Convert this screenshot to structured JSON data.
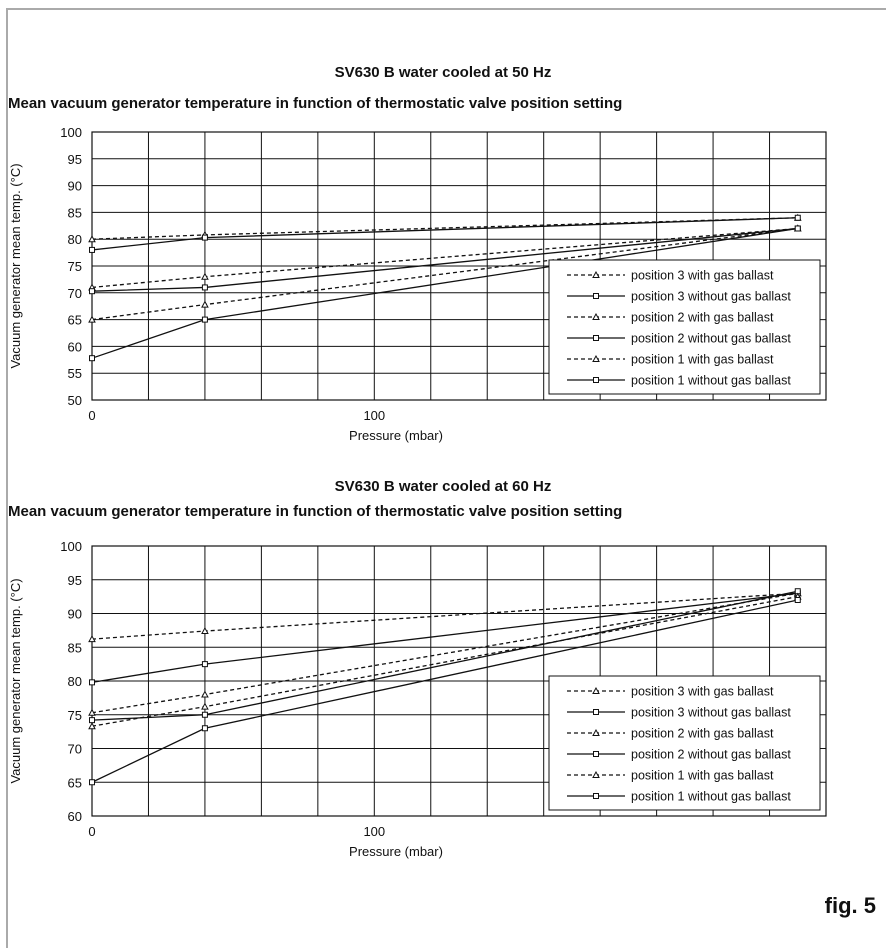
{
  "figure_label": "fig. 5",
  "charts": [
    {
      "title_line1": "SV630 B water cooled at 50 Hz",
      "title_line2": "Mean vacuum generator temperature in function of thermostatic valve position setting"
    },
    {
      "title_line1": "SV630 B water cooled at 60 Hz",
      "title_line2": "Mean vacuum generator temperature in function of thermostatic valve position setting"
    }
  ],
  "chart_data": [
    {
      "type": "line",
      "title": "SV630 B water cooled at 50 Hz",
      "subtitle": "Mean vacuum generator temperature in function of thermostatic valve position setting",
      "xlabel": "Pressure (mbar)",
      "ylabel": "Vacuum generator mean temp. (°C)",
      "xlim": [
        0,
        260
      ],
      "ylim": [
        50,
        100
      ],
      "x_ticks": [
        {
          "value": 0,
          "label": "0"
        },
        {
          "value": 100,
          "label": "100"
        }
      ],
      "y_ticks": [
        100,
        95,
        90,
        85,
        80,
        75,
        70,
        65,
        60,
        55,
        50
      ],
      "grid": true,
      "legend_position": "bottom-right",
      "series": [
        {
          "name": "position 3 with gas ballast",
          "style": "dashed",
          "marker": "triangle",
          "x": [
            0,
            40,
            250
          ],
          "y": [
            80,
            80.8,
            84
          ]
        },
        {
          "name": "position 3 without gas ballast",
          "style": "solid",
          "marker": "square",
          "x": [
            0,
            40,
            250
          ],
          "y": [
            78,
            80.3,
            84
          ]
        },
        {
          "name": "position 2 with gas ballast",
          "style": "dashed",
          "marker": "triangle",
          "x": [
            0,
            40,
            250
          ],
          "y": [
            71,
            73,
            82
          ]
        },
        {
          "name": "position 2 without gas ballast",
          "style": "solid",
          "marker": "square",
          "x": [
            0,
            40,
            250
          ],
          "y": [
            70.3,
            71,
            82
          ]
        },
        {
          "name": "position 1 with gas ballast",
          "style": "dashed",
          "marker": "triangle",
          "x": [
            0,
            40,
            250
          ],
          "y": [
            65,
            67.8,
            82
          ]
        },
        {
          "name": "position 1 without gas ballast",
          "style": "solid",
          "marker": "square",
          "x": [
            0,
            40,
            250
          ],
          "y": [
            57.8,
            65,
            82
          ]
        }
      ]
    },
    {
      "type": "line",
      "title": "SV630 B water cooled at 60 Hz",
      "subtitle": "Mean vacuum generator temperature in function of thermostatic valve position setting",
      "xlabel": "Pressure (mbar)",
      "ylabel": "Vacuum generator mean temp. (°C)",
      "xlim": [
        0,
        260
      ],
      "ylim": [
        60,
        100
      ],
      "x_ticks": [
        {
          "value": 0,
          "label": "0"
        },
        {
          "value": 100,
          "label": "100"
        }
      ],
      "y_ticks": [
        100,
        95,
        90,
        85,
        80,
        75,
        70,
        65,
        60
      ],
      "grid": true,
      "legend_position": "bottom-right",
      "series": [
        {
          "name": "position 3 with gas ballast",
          "style": "dashed",
          "marker": "triangle",
          "x": [
            0,
            40,
            250
          ],
          "y": [
            86.2,
            87.4,
            93
          ]
        },
        {
          "name": "position 3 without gas ballast",
          "style": "solid",
          "marker": "square",
          "x": [
            0,
            40,
            250
          ],
          "y": [
            79.8,
            82.5,
            93
          ]
        },
        {
          "name": "position 2 with gas ballast",
          "style": "dashed",
          "marker": "triangle",
          "x": [
            0,
            40,
            250
          ],
          "y": [
            75.3,
            78,
            93
          ]
        },
        {
          "name": "position 2 without gas ballast",
          "style": "solid",
          "marker": "square",
          "x": [
            0,
            40,
            250
          ],
          "y": [
            74.2,
            75,
            93.3
          ]
        },
        {
          "name": "position 1 with gas ballast",
          "style": "dashed",
          "marker": "triangle",
          "x": [
            0,
            40,
            250
          ],
          "y": [
            73.3,
            76.2,
            92.5
          ]
        },
        {
          "name": "position 1 without gas ballast",
          "style": "solid",
          "marker": "square",
          "x": [
            0,
            40,
            250
          ],
          "y": [
            65,
            73,
            92
          ]
        }
      ]
    }
  ]
}
